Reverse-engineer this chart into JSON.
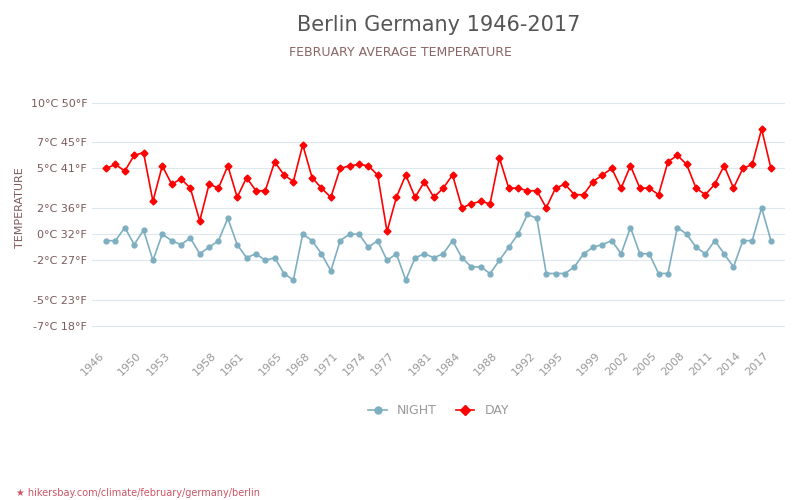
{
  "title": "Berlin Germany 1946-2017",
  "subtitle": "FEBRUARY AVERAGE TEMPERATURE",
  "ylabel": "TEMPERATURE",
  "xlabel_url": "hikersbay.com/climate/february/germany/berlin",
  "legend_night": "NIGHT",
  "legend_day": "DAY",
  "years": [
    1946,
    1947,
    1948,
    1949,
    1950,
    1951,
    1952,
    1953,
    1954,
    1955,
    1956,
    1957,
    1958,
    1959,
    1960,
    1961,
    1962,
    1963,
    1964,
    1965,
    1966,
    1967,
    1968,
    1969,
    1970,
    1971,
    1972,
    1973,
    1974,
    1975,
    1976,
    1977,
    1978,
    1979,
    1980,
    1981,
    1982,
    1983,
    1984,
    1985,
    1986,
    1987,
    1988,
    1989,
    1990,
    1991,
    1992,
    1993,
    1994,
    1995,
    1996,
    1997,
    1998,
    1999,
    2000,
    2001,
    2002,
    2003,
    2004,
    2005,
    2006,
    2007,
    2008,
    2009,
    2010,
    2011,
    2012,
    2013,
    2014,
    2015,
    2016,
    2017
  ],
  "day_temps": [
    5.0,
    5.3,
    4.8,
    6.0,
    6.2,
    2.5,
    5.2,
    3.8,
    4.2,
    3.5,
    1.0,
    3.8,
    3.5,
    5.2,
    2.8,
    4.3,
    3.3,
    3.3,
    5.5,
    4.5,
    4.0,
    6.8,
    4.3,
    3.5,
    2.8,
    5.0,
    5.2,
    5.3,
    5.2,
    4.5,
    0.2,
    2.8,
    4.5,
    2.8,
    4.0,
    2.8,
    3.5,
    4.5,
    2.0,
    2.3,
    2.5,
    2.3,
    5.8,
    3.5,
    3.5,
    3.3,
    3.3,
    2.0,
    3.5,
    3.8,
    3.0,
    3.0,
    4.0,
    4.5,
    5.0,
    3.5,
    5.2,
    3.5,
    3.5,
    3.0,
    5.5,
    6.0,
    5.3,
    3.5,
    3.0,
    3.8,
    5.2,
    3.5,
    5.0,
    5.3,
    8.0,
    5.0
  ],
  "night_temps": [
    -0.5,
    -0.5,
    0.5,
    -0.8,
    0.3,
    -2.0,
    0.0,
    -0.5,
    -0.8,
    -0.3,
    -1.5,
    -1.0,
    -0.5,
    1.2,
    -0.8,
    -1.8,
    -1.5,
    -2.0,
    -1.8,
    -3.0,
    -3.5,
    0.0,
    -0.5,
    -1.5,
    -2.8,
    -0.5,
    0.0,
    0.0,
    -1.0,
    -0.5,
    -2.0,
    -1.5,
    -3.5,
    -1.8,
    -1.5,
    -1.8,
    -1.5,
    -0.5,
    -1.8,
    -2.5,
    -2.5,
    -3.0,
    -2.0,
    -1.0,
    0.0,
    1.5,
    1.2,
    -3.0,
    -3.0,
    -3.0,
    -2.5,
    -1.5,
    -1.0,
    -0.8,
    -0.5,
    -1.5,
    0.5,
    -1.5,
    -1.5,
    -3.0,
    -3.0,
    0.5,
    0.0,
    -1.0,
    -1.5,
    -0.5,
    -1.5,
    -2.5,
    -0.5,
    -0.5,
    2.0,
    -0.5
  ],
  "yticks_celsius": [
    -7,
    -5,
    -2,
    0,
    2,
    5,
    7,
    10
  ],
  "yticks_fahrenheit": [
    18,
    23,
    27,
    32,
    36,
    41,
    45,
    50
  ],
  "ylim_celsius": [
    -8.5,
    12.5
  ],
  "day_color": "#ff0000",
  "night_color": "#7eafc0",
  "title_color": "#555555",
  "subtitle_color": "#8b6565",
  "axis_label_color": "#7b5b5b",
  "tick_color": "#999999",
  "grid_color": "#dde8ee",
  "background_color": "#ffffff",
  "url_color": "#cc5566",
  "title_fontsize": 15,
  "subtitle_fontsize": 9,
  "axis_label_fontsize": 8,
  "x_ticks": [
    1946,
    1950,
    1953,
    1958,
    1961,
    1965,
    1968,
    1971,
    1974,
    1977,
    1981,
    1984,
    1988,
    1992,
    1995,
    1999,
    2002,
    2005,
    2008,
    2011,
    2014,
    2017
  ]
}
